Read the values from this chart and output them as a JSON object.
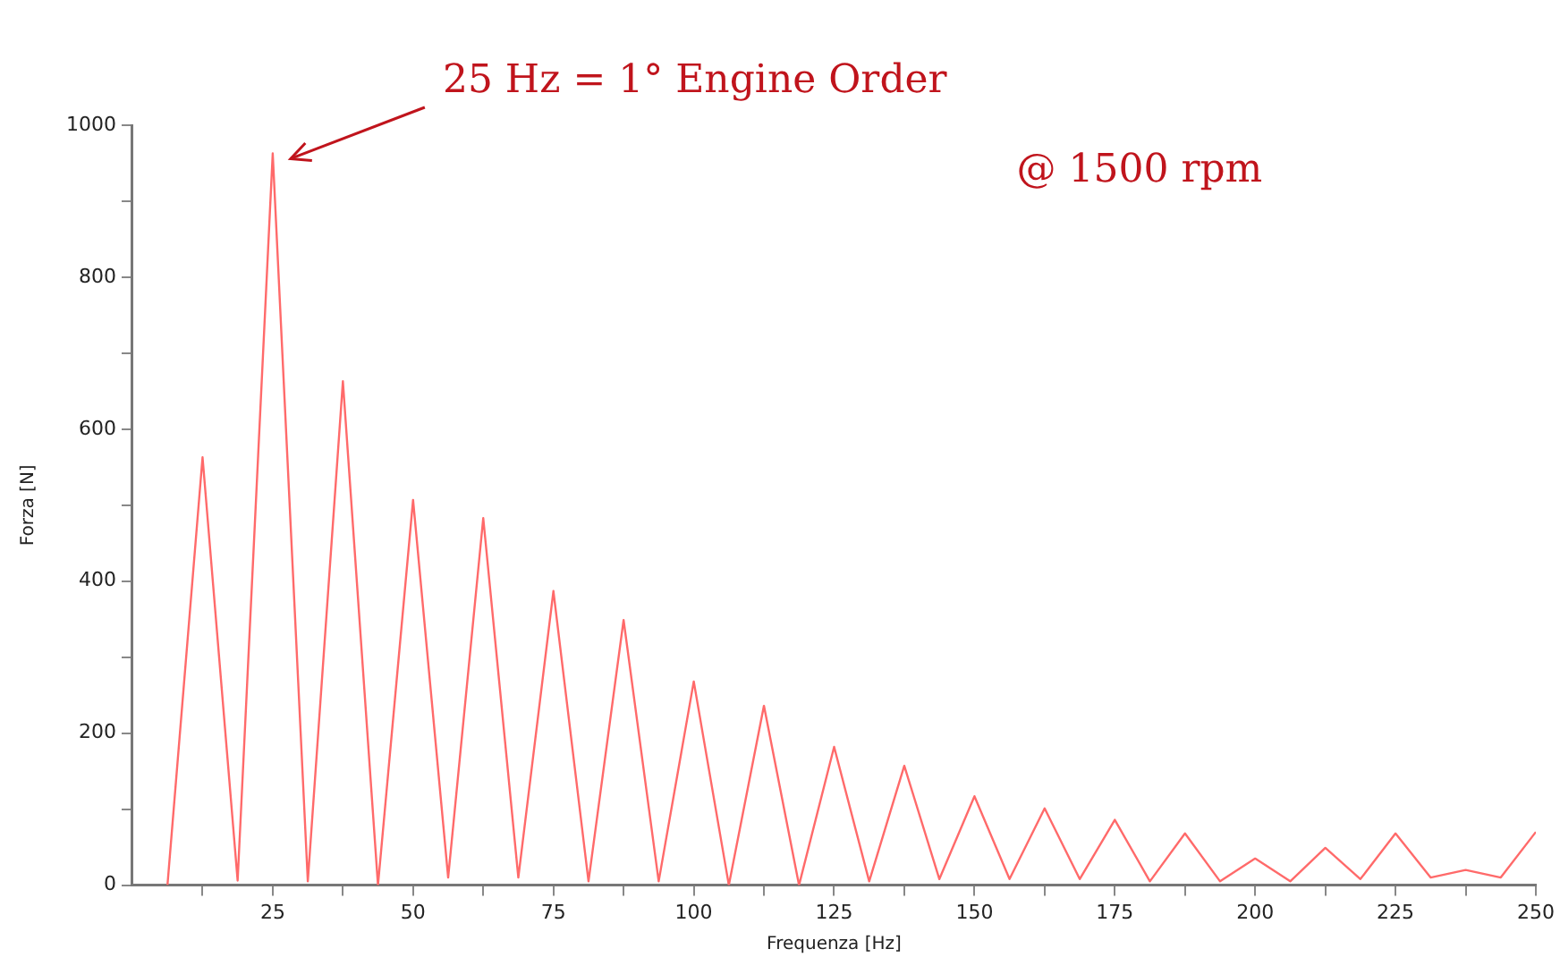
{
  "chart_data": {
    "type": "line",
    "xlabel": "Frequenza [Hz]",
    "ylabel": "Forza [N]",
    "annotations": [
      "25 Hz = 1° Engine Order",
      "@ 1500 rpm"
    ],
    "x": [
      6.25,
      12.5,
      18.75,
      25,
      31.25,
      37.5,
      43.75,
      50,
      56.25,
      62.5,
      68.75,
      75,
      81.25,
      87.5,
      93.75,
      100,
      106.25,
      112.5,
      118.75,
      125,
      131.25,
      137.5,
      143.75,
      150,
      156.25,
      162.5,
      168.75,
      175,
      181.25,
      187.5,
      193.75,
      200,
      206.25,
      212.5,
      218.75,
      225,
      231.25,
      237.5,
      243.75,
      250
    ],
    "series": [
      {
        "color": "#ff6a6a",
        "values": [
          0,
          563,
          6,
          963,
          5,
          663,
          0,
          507,
          10,
          483,
          10,
          387,
          5,
          349,
          5,
          268,
          0,
          236,
          0,
          182,
          5,
          157,
          8,
          117,
          8,
          101,
          8,
          86,
          5,
          68,
          5,
          35,
          5,
          49,
          8,
          68,
          10,
          20,
          10,
          70
        ]
      }
    ],
    "xlim": [
      0,
      250
    ],
    "xticks": [
      {
        "value": 12.5,
        "label": null
      },
      25,
      {
        "value": 37.5,
        "label": null
      },
      50,
      {
        "value": 62.5,
        "label": null
      },
      75,
      {
        "value": 87.5,
        "label": null
      },
      100,
      {
        "value": 112.5,
        "label": null
      },
      125,
      {
        "value": 137.5,
        "label": null
      },
      150,
      {
        "value": 162.5,
        "label": null
      },
      175,
      {
        "value": 187.5,
        "label": null
      },
      200,
      {
        "value": 212.5,
        "label": null
      },
      225,
      {
        "value": 237.5,
        "label": null
      },
      250
    ],
    "ylim": [
      0,
      1000
    ],
    "yticks": [
      0,
      {
        "value": 100,
        "label": null
      },
      200,
      {
        "value": 300,
        "label": null
      },
      400,
      {
        "value": 500,
        "label": null
      },
      600,
      {
        "value": 700,
        "label": null
      },
      800,
      {
        "value": 900,
        "label": null
      },
      1000
    ],
    "grid": false,
    "legend": false,
    "marker": "none",
    "line_style": "solid"
  }
}
